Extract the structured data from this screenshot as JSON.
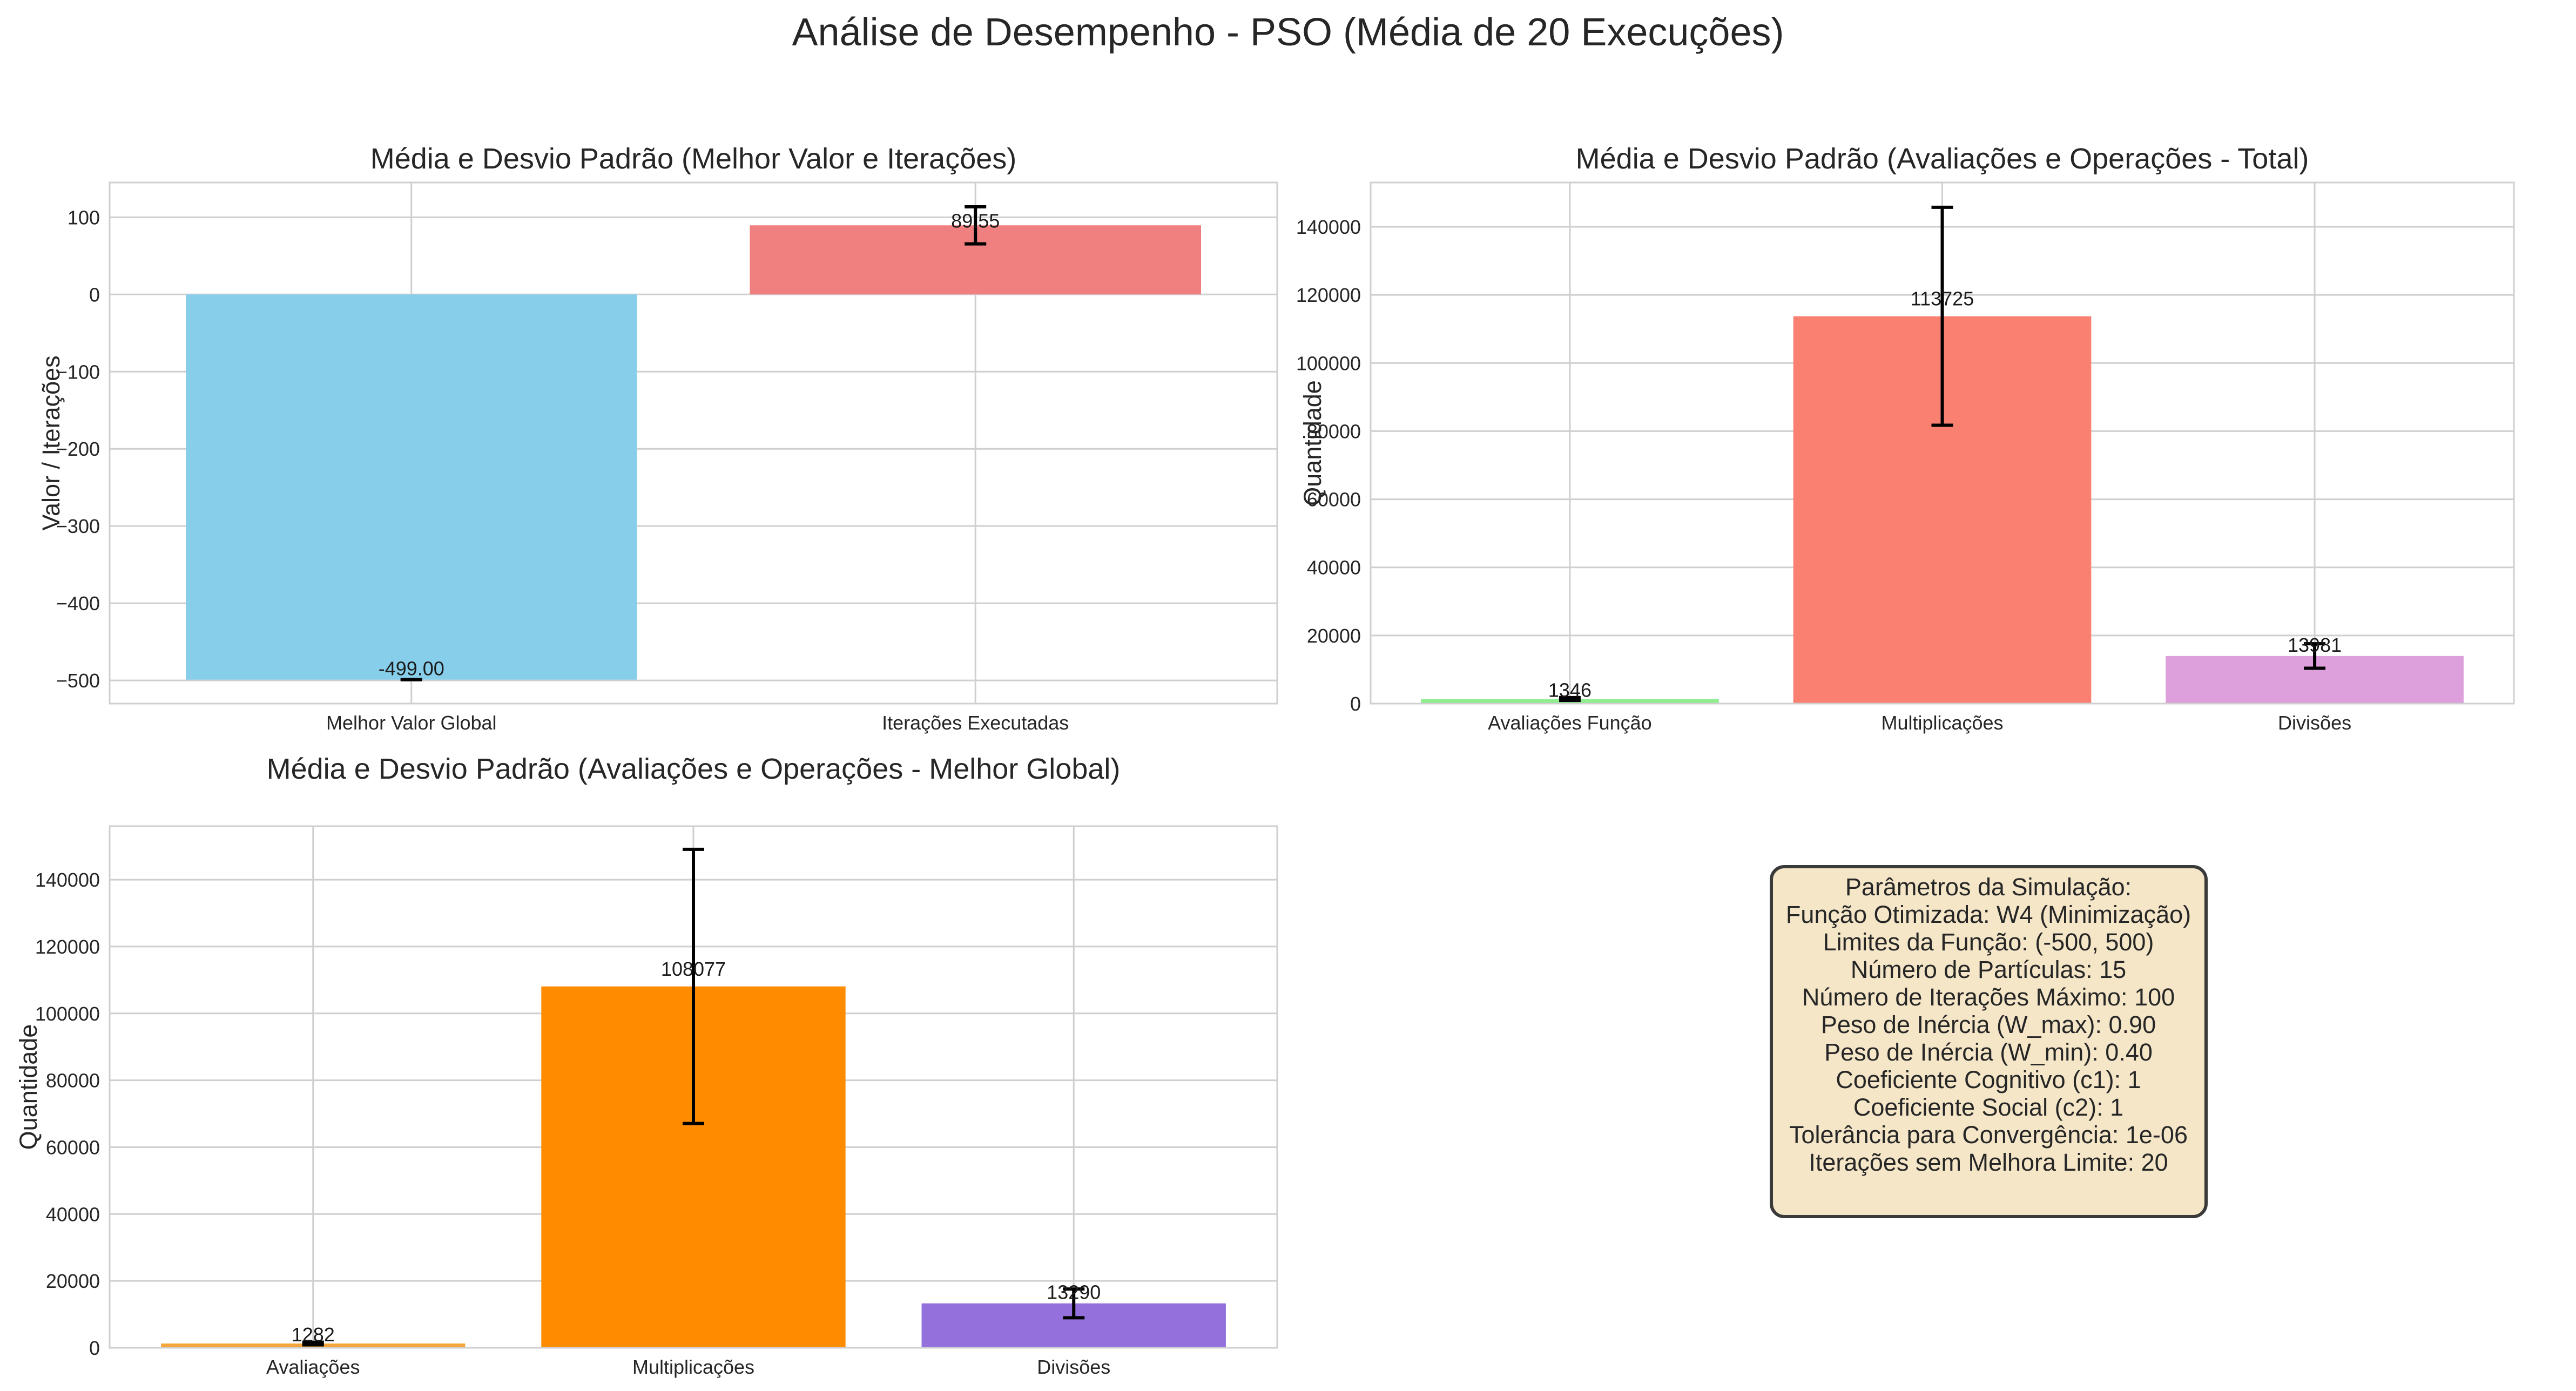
{
  "figure": {
    "suptitle": "Análise de Desempenho - PSO (Média de 20 Execuções)"
  },
  "chart_data": [
    {
      "type": "bar",
      "title": "Média e Desvio Padrão (Melhor Valor e Iterações)",
      "xlabel": "",
      "ylabel": "Valor / Iterações",
      "categories": [
        "Melhor Valor Global",
        "Iterações Executadas"
      ],
      "values": [
        -499.0,
        89.55
      ],
      "errors": [
        0.0,
        24.0
      ],
      "value_labels": [
        "-499.00",
        "89.55"
      ],
      "colors": [
        "#87ceeb",
        "#f08080"
      ],
      "ylim": [
        -530,
        145
      ],
      "yticks": [
        -500,
        -400,
        -300,
        -200,
        -100,
        0,
        100
      ],
      "ytick_labels": [
        "−500",
        "−400",
        "−300",
        "−200",
        "−100",
        "0",
        "100"
      ],
      "grid": true
    },
    {
      "type": "bar",
      "title": "Média e Desvio Padrão (Avaliações e Operações - Total)",
      "xlabel": "",
      "ylabel": "Quantidade",
      "categories": [
        "Avaliações Função",
        "Multiplicações",
        "Divisões"
      ],
      "values": [
        1346,
        113725,
        13981
      ],
      "errors": [
        420,
        32000,
        3600
      ],
      "value_labels": [
        "1346",
        "113725",
        "13981"
      ],
      "colors": [
        "#90ee90",
        "#fa8072",
        "#dda0dd"
      ],
      "ylim": [
        0,
        153000
      ],
      "yticks": [
        0,
        20000,
        40000,
        60000,
        80000,
        100000,
        120000,
        140000
      ],
      "ytick_labels": [
        "0",
        "20000",
        "40000",
        "60000",
        "80000",
        "100000",
        "120000",
        "140000"
      ],
      "grid": true
    },
    {
      "type": "bar",
      "title": "Média e Desvio Padrão (Avaliações e Operações - Melhor Global)",
      "xlabel": "",
      "ylabel": "Quantidade",
      "categories": [
        "Avaliações",
        "Multiplicações",
        "Divisões"
      ],
      "values": [
        1282,
        108077,
        13290
      ],
      "errors": [
        400,
        41000,
        4300
      ],
      "value_labels": [
        "1282",
        "108077",
        "13290"
      ],
      "colors": [
        "#f4a63a",
        "#ff8c00",
        "#9370db"
      ],
      "ylim": [
        0,
        156000
      ],
      "yticks": [
        0,
        20000,
        40000,
        60000,
        80000,
        100000,
        120000,
        140000
      ],
      "ytick_labels": [
        "0",
        "20000",
        "40000",
        "60000",
        "80000",
        "100000",
        "120000",
        "140000"
      ],
      "grid": true
    }
  ],
  "params_box": {
    "background_color": "#f5e6c8",
    "lines": [
      "Parâmetros da Simulação:",
      "Função Otimizada: W4 (Minimização)",
      "Limites da Função: (-500, 500)",
      "Número de Partículas: 15",
      "Número de Iterações Máximo: 100",
      "Peso de Inércia (W_max): 0.90",
      "Peso de Inércia (W_min): 0.40",
      "Coeficiente Cognitivo (c1): 1",
      "Coeficiente Social (c2): 1",
      "Tolerância para Convergência: 1e-06",
      "Iterações sem Melhora Limite: 20"
    ]
  }
}
